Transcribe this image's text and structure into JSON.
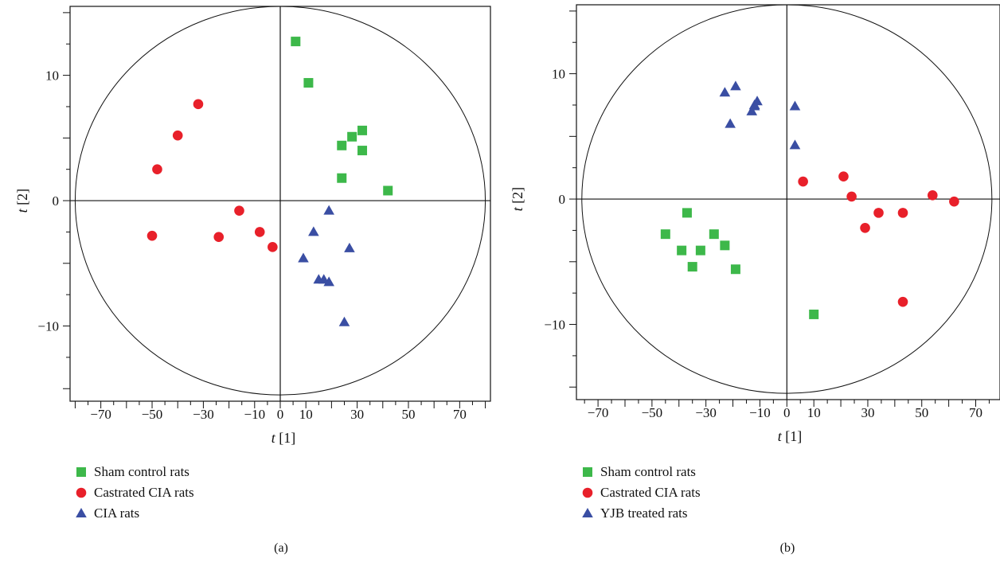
{
  "colors": {
    "sham": "#3db84a",
    "castrated": "#e8202a",
    "third": "#3a4ea3"
  },
  "chart_data": [
    {
      "type": "scatter",
      "panel_label": "(a)",
      "xlabel_t": "t",
      "xlabel_idx": "[1]",
      "ylabel_t": "t",
      "ylabel_idx": "[2]",
      "xlim": [
        -82,
        82
      ],
      "ylim": [
        -16,
        15.5
      ],
      "xticks": [
        -70,
        -50,
        -30,
        -10,
        0,
        10,
        30,
        50,
        70
      ],
      "xtick_labels": [
        "−70",
        "−50",
        "−30",
        "−10",
        "0",
        "10",
        "30",
        "50",
        "70"
      ],
      "yticks": [
        -10,
        0,
        10
      ],
      "ytick_labels": [
        "−10",
        "0",
        "10"
      ],
      "ellipse": {
        "rx": 80,
        "ry": 15.5
      },
      "legend_position": "bottom-left",
      "series": [
        {
          "name": "Sham control rats",
          "marker": "square",
          "color": "#3db84a",
          "x": [
            6,
            11,
            24,
            28,
            32,
            32,
            24,
            42
          ],
          "y": [
            12.7,
            9.4,
            4.4,
            5.1,
            5.6,
            4.0,
            1.8,
            0.8
          ]
        },
        {
          "name": "Castrated CIA rats",
          "marker": "circle",
          "color": "#e8202a",
          "x": [
            -32,
            -40,
            -48,
            -50,
            -16,
            -24,
            -8,
            -3
          ],
          "y": [
            7.7,
            5.2,
            2.5,
            -2.8,
            -0.8,
            -2.9,
            -2.5,
            -3.7
          ]
        },
        {
          "name": "CIA rats",
          "marker": "triangle",
          "color": "#3a4ea3",
          "x": [
            19,
            13,
            27,
            9,
            15,
            17,
            19,
            25
          ],
          "y": [
            -0.8,
            -2.5,
            -3.8,
            -4.6,
            -6.3,
            -6.3,
            -6.5,
            -9.7
          ]
        }
      ]
    },
    {
      "type": "scatter",
      "panel_label": "(b)",
      "xlabel_t": "t",
      "xlabel_idx": "[1]",
      "ylabel_t": "t",
      "ylabel_idx": "[2]",
      "xlim": [
        -78,
        79
      ],
      "ylim": [
        -16,
        15.5
      ],
      "xticks": [
        -70,
        -50,
        -30,
        -10,
        0,
        10,
        30,
        50,
        70
      ],
      "xtick_labels": [
        "−70",
        "−50",
        "−30",
        "−10",
        "0",
        "10",
        "30",
        "50",
        "70"
      ],
      "yticks": [
        -10,
        0,
        10
      ],
      "ytick_labels": [
        "−10",
        "0",
        "10"
      ],
      "ellipse": {
        "rx": 76,
        "ry": 15.5
      },
      "legend_position": "bottom-left",
      "series": [
        {
          "name": "Sham control rats",
          "marker": "square",
          "color": "#3db84a",
          "x": [
            -45,
            -37,
            -39,
            -35,
            -32,
            -27,
            -23,
            -19,
            10
          ],
          "y": [
            -2.8,
            -1.1,
            -4.1,
            -5.4,
            -4.1,
            -2.8,
            -3.7,
            -5.6,
            -9.2
          ]
        },
        {
          "name": "Castrated CIA rats",
          "marker": "circle",
          "color": "#e8202a",
          "x": [
            6,
            21,
            24,
            34,
            29,
            43,
            54,
            62,
            43
          ],
          "y": [
            1.4,
            1.8,
            0.2,
            -1.1,
            -2.3,
            -1.1,
            0.3,
            -0.2,
            -8.2
          ]
        },
        {
          "name": "YJB treated rats",
          "marker": "triangle",
          "color": "#3a4ea3",
          "x": [
            -23,
            -19,
            -21,
            -13,
            -12,
            -11,
            -12,
            3,
            3
          ],
          "y": [
            8.5,
            9.0,
            6.0,
            7.0,
            7.5,
            7.8,
            7.4,
            7.4,
            4.3
          ]
        }
      ]
    }
  ]
}
